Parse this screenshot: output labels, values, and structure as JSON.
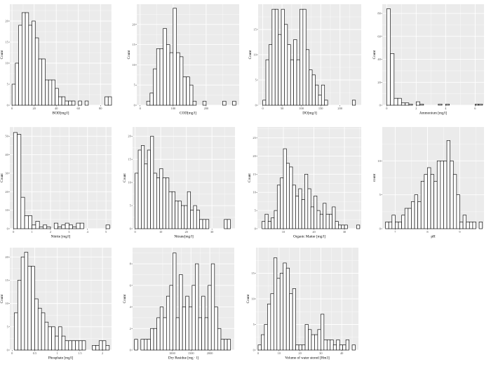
{
  "chart_data": [
    {
      "id": "bod",
      "type": "bar",
      "title": "",
      "xlabel": "BOD[mg/l]",
      "ylabel": "Count",
      "xlim": [
        -2,
        90
      ],
      "ylim": [
        0,
        24
      ],
      "xticks": [
        0,
        20,
        40,
        60,
        80
      ],
      "yticks": [
        0,
        5,
        10,
        15,
        20
      ],
      "binwidth": 3,
      "bins_start": [
        0,
        3,
        6,
        9,
        12,
        15,
        18,
        21,
        24,
        27,
        30,
        33,
        36,
        39,
        42,
        45,
        48,
        51,
        54,
        57,
        60,
        63,
        66,
        69,
        72,
        75,
        78,
        81,
        84,
        87
      ],
      "values": [
        5,
        10,
        19,
        22,
        22,
        19,
        20,
        16,
        11,
        11,
        6,
        6,
        6,
        4,
        2,
        2,
        1,
        1,
        1,
        0,
        1,
        0,
        1,
        0,
        0,
        0,
        0,
        0,
        2,
        2
      ]
    },
    {
      "id": "cod",
      "type": "bar",
      "title": "",
      "xlabel": "COD[mg/l]",
      "ylabel": "Count",
      "xlim": [
        -10,
        300
      ],
      "ylim": [
        0,
        25
      ],
      "xticks": [
        0,
        100,
        200
      ],
      "yticks": [
        0,
        5,
        10,
        15,
        20
      ],
      "binwidth": 10,
      "bins_start": [
        20,
        30,
        40,
        50,
        60,
        70,
        80,
        90,
        100,
        110,
        120,
        130,
        140,
        150,
        160,
        170,
        180,
        190,
        200,
        210,
        220,
        230,
        240,
        250,
        260,
        270,
        280
      ],
      "values": [
        1,
        3,
        9,
        14,
        14,
        19,
        15,
        13,
        24,
        13,
        12,
        7,
        7,
        5,
        1,
        0,
        0,
        1,
        0,
        0,
        0,
        0,
        0,
        1,
        0,
        0,
        1
      ]
    },
    {
      "id": "do",
      "type": "bar",
      "title": "",
      "xlabel": "DO[mg/l]",
      "ylabel": "Count",
      "xlim": [
        -12,
        255
      ],
      "ylim": [
        0,
        20
      ],
      "xticks": [
        0,
        50,
        100,
        150,
        200
      ],
      "yticks": [
        0,
        5,
        10,
        15
      ],
      "binwidth": 8,
      "bins_start": [
        0,
        8,
        16,
        24,
        32,
        40,
        48,
        56,
        64,
        72,
        80,
        88,
        96,
        104,
        112,
        120,
        128,
        136,
        144,
        152,
        160,
        168,
        176,
        184,
        192,
        200,
        208,
        216,
        224,
        232
      ],
      "values": [
        1,
        9,
        12,
        19,
        19,
        14,
        19,
        16,
        12,
        9,
        13,
        9,
        19,
        19,
        11,
        7,
        6,
        4,
        2,
        4,
        1,
        0,
        0,
        0,
        0,
        0,
        0,
        0,
        0,
        1
      ]
    },
    {
      "id": "ammonium",
      "type": "bar",
      "title": "",
      "xlabel": "Ammonium [mg/l]",
      "ylabel": "Count",
      "xlim": [
        -0.3,
        6.6
      ],
      "ylim": [
        0,
        88
      ],
      "xticks": [
        0,
        2,
        4,
        6
      ],
      "yticks": [
        0,
        20,
        40,
        60,
        80
      ],
      "binwidth": 0.25,
      "bins_start": [
        0,
        0.25,
        0.5,
        0.75,
        1.0,
        1.25,
        1.5,
        1.75,
        2.0,
        2.25,
        2.5,
        2.75,
        3.0,
        3.25,
        3.5,
        3.75,
        4.0,
        4.25,
        4.5,
        4.75,
        5.0,
        5.25,
        5.5,
        5.75,
        6.0,
        6.25
      ],
      "values": [
        84,
        45,
        6,
        6,
        2,
        2,
        1,
        0,
        3,
        1,
        0,
        0,
        0,
        0,
        1,
        0,
        1,
        0,
        0,
        0,
        0,
        0,
        0,
        0,
        1,
        1
      ]
    },
    {
      "id": "nitrite",
      "type": "bar",
      "title": "",
      "xlabel": "Nitrite [mg/l]",
      "ylabel": "Count",
      "xlim": [
        -0.2,
        5.3
      ],
      "ylim": [
        0,
        55
      ],
      "xticks": [
        0,
        1,
        2,
        3,
        4,
        5
      ],
      "yticks": [
        0,
        10,
        20,
        30,
        40,
        50
      ],
      "binwidth": 0.2,
      "bins_start": [
        0,
        0.2,
        0.4,
        0.6,
        0.8,
        1.0,
        1.2,
        1.4,
        1.6,
        1.8,
        2.0,
        2.2,
        2.4,
        2.6,
        2.8,
        3.0,
        3.2,
        3.4,
        3.6,
        3.8,
        4.0,
        4.2,
        4.4,
        4.6,
        4.8,
        5.0
      ],
      "values": [
        52,
        51,
        17,
        7,
        7,
        2,
        4,
        1,
        2,
        1,
        0,
        3,
        1,
        2,
        3,
        2,
        1,
        3,
        3,
        0,
        0,
        0,
        0,
        0,
        0,
        2
      ]
    },
    {
      "id": "nitrate",
      "type": "bar",
      "title": "",
      "xlabel": "Nitrate[mg/l]",
      "ylabel": "Count",
      "xlim": [
        -1,
        39
      ],
      "ylim": [
        0,
        22
      ],
      "xticks": [
        0,
        10,
        20,
        30
      ],
      "yticks": [
        0,
        5,
        10,
        15,
        20
      ],
      "binwidth": 1.2,
      "bins_start": [
        0,
        1.2,
        2.4,
        3.6,
        4.8,
        6.0,
        7.2,
        8.4,
        9.6,
        10.8,
        12.0,
        13.2,
        14.4,
        15.6,
        16.8,
        18.0,
        19.2,
        20.4,
        21.6,
        22.8,
        24.0,
        25.2,
        26.4,
        27.6,
        28.8,
        30.0,
        31.2,
        32.4,
        33.6,
        34.8,
        36.0
      ],
      "values": [
        12,
        17,
        18,
        14,
        17,
        20,
        12,
        11,
        13,
        11,
        11,
        8,
        8,
        6,
        6,
        5,
        5,
        8,
        4,
        5,
        4,
        2,
        2,
        2,
        0,
        0,
        0,
        0,
        0,
        2,
        2
      ]
    },
    {
      "id": "organic_matter",
      "type": "bar",
      "title": "",
      "xlabel": "Organic Matter [mg/l]",
      "ylabel": "Count",
      "xlim": [
        1.5,
        35.5
      ],
      "ylim": [
        0,
        28
      ],
      "xticks": [
        10,
        20,
        30
      ],
      "yticks": [
        0,
        5,
        10,
        15,
        20,
        25
      ],
      "binwidth": 1,
      "bins_start": [
        3,
        4,
        5,
        6,
        7,
        8,
        9,
        10,
        11,
        12,
        13,
        14,
        15,
        16,
        17,
        18,
        19,
        20,
        21,
        22,
        23,
        24,
        25,
        26,
        27,
        28,
        29,
        30,
        31,
        32,
        33,
        34
      ],
      "values": [
        2,
        4,
        2,
        3,
        5,
        12,
        14,
        22,
        18,
        17,
        12,
        9,
        11,
        8,
        15,
        11,
        6,
        9,
        5,
        4,
        7,
        4,
        4,
        6,
        2,
        1,
        1,
        1,
        0,
        0,
        0,
        1
      ]
    },
    {
      "id": "ph",
      "type": "bar",
      "title": "",
      "xlabel": "pH",
      "ylabel": "count",
      "xlim": [
        6.6,
        9.75
      ],
      "ylim": [
        0,
        15
      ],
      "xticks": [
        7,
        8,
        9
      ],
      "yticks": [
        0,
        5,
        10
      ],
      "binwidth": 0.1,
      "bins_start": [
        6.7,
        6.8,
        6.9,
        7.0,
        7.1,
        7.2,
        7.3,
        7.4,
        7.5,
        7.6,
        7.7,
        7.8,
        7.9,
        8.0,
        8.1,
        8.2,
        8.3,
        8.4,
        8.5,
        8.6,
        8.7,
        8.8,
        8.9,
        9.0,
        9.1,
        9.2,
        9.3,
        9.4,
        9.5,
        9.6
      ],
      "values": [
        1,
        1,
        2,
        1,
        1,
        2,
        3,
        3,
        4,
        5,
        4,
        7,
        8,
        9,
        8,
        7,
        10,
        10,
        10,
        13,
        10,
        8,
        5,
        1,
        2,
        1,
        1,
        1,
        0,
        1
      ]
    },
    {
      "id": "phosphate",
      "type": "bar",
      "title": "",
      "xlabel": "Phosphate [mg/l]",
      "ylabel": "Count",
      "xlim": [
        -0.05,
        2.2
      ],
      "ylim": [
        0,
        22
      ],
      "xticks": [
        0.0,
        0.5,
        1.0,
        1.5,
        2.0
      ],
      "yticks": [
        0,
        5,
        10,
        15,
        20
      ],
      "binwidth": 0.075,
      "bins_start": [
        0.05,
        0.125,
        0.2,
        0.275,
        0.35,
        0.425,
        0.5,
        0.575,
        0.65,
        0.725,
        0.8,
        0.875,
        0.95,
        1.025,
        1.1,
        1.175,
        1.25,
        1.325,
        1.4,
        1.475,
        1.55,
        1.625,
        1.7,
        1.775,
        1.85,
        1.925,
        2.0,
        2.075
      ],
      "values": [
        8,
        15,
        20,
        21,
        18,
        18,
        11,
        9,
        8,
        6,
        5,
        5,
        3,
        5,
        3,
        2,
        2,
        2,
        2,
        2,
        2,
        0,
        0,
        1,
        1,
        2,
        2,
        1
      ]
    },
    {
      "id": "dry_residue",
      "type": "bar",
      "title": "",
      "xlabel": "Dry Residue [mg · l]",
      "ylabel": "Count",
      "xlim": [
        -50,
        2650
      ],
      "ylim": [
        0,
        9.5
      ],
      "xticks": [
        1000,
        1500,
        2000
      ],
      "yticks": [
        0,
        2,
        4,
        6,
        8
      ],
      "binwidth": 85,
      "bins_start": [
        0,
        85,
        170,
        255,
        340,
        425,
        510,
        595,
        680,
        765,
        850,
        935,
        1020,
        1105,
        1190,
        1275,
        1360,
        1445,
        1530,
        1615,
        1700,
        1785,
        1870,
        1955,
        2040,
        2125,
        2210,
        2295,
        2380,
        2465
      ],
      "values": [
        1,
        0,
        1,
        1,
        1,
        2,
        2,
        3,
        4,
        3,
        5,
        6,
        9,
        3,
        7,
        4,
        5,
        4,
        6,
        8,
        3,
        5,
        3,
        6,
        8,
        4,
        2,
        1,
        1,
        1
      ]
    },
    {
      "id": "water_volume",
      "type": "bar",
      "title": "",
      "xlabel": "Volume of water stored [Hm3]",
      "ylabel": "Count",
      "xlim": [
        -1,
        48
      ],
      "ylim": [
        0,
        20
      ],
      "xticks": [
        0,
        10,
        20,
        30,
        40
      ],
      "yticks": [
        0,
        5,
        10,
        15
      ],
      "binwidth": 1.5,
      "bins_start": [
        0,
        1.5,
        3.0,
        4.5,
        6.0,
        7.5,
        9.0,
        10.5,
        12.0,
        13.5,
        15.0,
        16.5,
        18.0,
        19.5,
        21.0,
        22.5,
        24.0,
        25.5,
        27.0,
        28.5,
        30.0,
        31.5,
        33.0,
        34.5,
        36.0,
        37.5,
        39.0,
        40.5,
        42.0,
        43.5,
        45.0
      ],
      "values": [
        1,
        3,
        5,
        9,
        11,
        18,
        14,
        15,
        17,
        16,
        11,
        12,
        1,
        1,
        1,
        5,
        4,
        3,
        3,
        4,
        7,
        2,
        2,
        2,
        1,
        2,
        1,
        1,
        2,
        0,
        1
      ]
    }
  ]
}
